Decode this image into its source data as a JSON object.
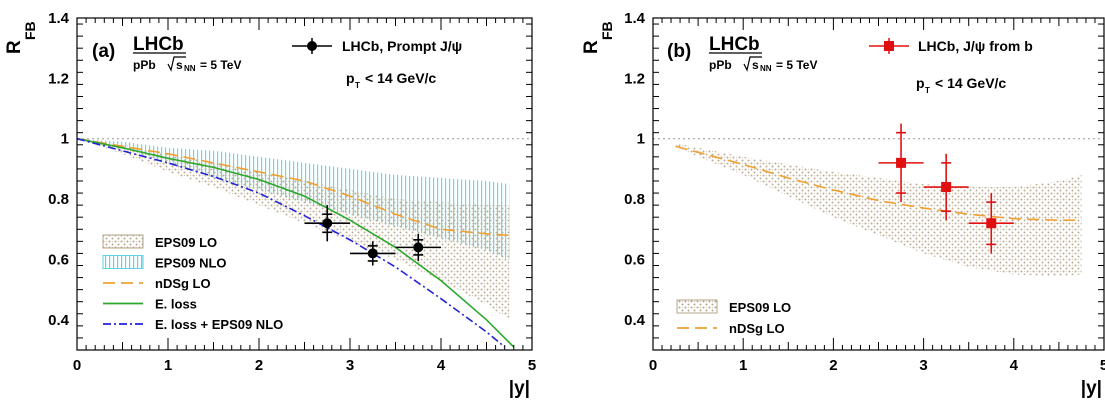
{
  "chart_data": [
    {
      "type": "line",
      "panel_label": "(a)",
      "experiment": "LHCb",
      "collision": "pPb",
      "energy_label": "= 5 TeV",
      "energy_symbol": "s",
      "energy_sub": "NN",
      "pt_label": "p",
      "pt_sub": "T",
      "pt_rest": "< 14 GeV/c",
      "xlabel": "|y|",
      "ylabel": "R",
      "ylabel_sub": "FB",
      "xlim": [
        0,
        5
      ],
      "ylim": [
        0.3,
        1.4
      ],
      "xticks": [
        "0",
        "1",
        "2",
        "3",
        "4",
        "5"
      ],
      "yticks": [
        "0.4",
        "0.6",
        "0.8",
        "1",
        "1.2",
        "1.4"
      ],
      "reference_line": 1,
      "data_legend": "LHCb, Prompt J/ψ",
      "data_color": "#000000",
      "data_points": [
        {
          "x": 2.75,
          "y": 0.72,
          "xerr": 0.25,
          "stat": 0.03,
          "tot": 0.06
        },
        {
          "x": 3.25,
          "y": 0.62,
          "xerr": 0.25,
          "stat": 0.025,
          "tot": 0.04
        },
        {
          "x": 3.75,
          "y": 0.64,
          "xerr": 0.25,
          "stat": 0.025,
          "tot": 0.045
        }
      ],
      "series": [
        {
          "name": "EPS09 LO",
          "kind": "band",
          "color": "#b5a58a",
          "x": [
            0,
            0.5,
            1,
            1.5,
            2,
            2.5,
            3,
            3.5,
            4,
            4.5,
            4.75
          ],
          "low": [
            1.0,
            0.95,
            0.89,
            0.84,
            0.78,
            0.72,
            0.66,
            0.6,
            0.53,
            0.45,
            0.4
          ],
          "high": [
            1.0,
            0.98,
            0.95,
            0.92,
            0.89,
            0.86,
            0.83,
            0.8,
            0.79,
            0.78,
            0.78
          ]
        },
        {
          "name": "EPS09 NLO",
          "kind": "band",
          "color": "#5fd3e0",
          "x": [
            0,
            0.5,
            1,
            1.5,
            2,
            2.5,
            3,
            3.5,
            4,
            4.5,
            4.75
          ],
          "low": [
            1.0,
            0.97,
            0.92,
            0.87,
            0.83,
            0.79,
            0.75,
            0.71,
            0.67,
            0.63,
            0.6
          ],
          "high": [
            1.0,
            0.99,
            0.97,
            0.96,
            0.94,
            0.92,
            0.9,
            0.88,
            0.87,
            0.86,
            0.85
          ]
        },
        {
          "name": "nDSg LO",
          "kind": "line",
          "color": "#f0a030",
          "dash": "12 6",
          "x": [
            0,
            0.5,
            1,
            1.5,
            2,
            2.5,
            3,
            3.5,
            4,
            4.5,
            4.75
          ],
          "y": [
            1.0,
            0.975,
            0.95,
            0.92,
            0.89,
            0.86,
            0.81,
            0.75,
            0.7,
            0.685,
            0.68
          ]
        },
        {
          "name": "E. loss",
          "kind": "line",
          "color": "#2ba82b",
          "dash": "",
          "x": [
            0,
            0.5,
            1,
            1.5,
            2,
            2.5,
            3,
            3.5,
            4,
            4.5,
            4.8
          ],
          "y": [
            1.0,
            0.97,
            0.935,
            0.905,
            0.865,
            0.81,
            0.73,
            0.64,
            0.53,
            0.4,
            0.31
          ]
        },
        {
          "name": "E. loss + EPS09 NLO",
          "kind": "line",
          "color": "#2323d6",
          "dash": "8 3 2 3",
          "x": [
            0,
            0.5,
            1,
            1.5,
            2,
            2.5,
            3,
            3.5,
            4,
            4.5,
            4.7
          ],
          "y": [
            1.0,
            0.96,
            0.92,
            0.875,
            0.82,
            0.745,
            0.665,
            0.575,
            0.47,
            0.36,
            0.31
          ]
        }
      ]
    },
    {
      "type": "line",
      "panel_label": "(b)",
      "experiment": "LHCb",
      "collision": "pPb",
      "energy_label": "= 5 TeV",
      "energy_symbol": "s",
      "energy_sub": "NN",
      "pt_label": "p",
      "pt_sub": "T",
      "pt_rest": "< 14 GeV/c",
      "xlabel": "|y|",
      "ylabel": "R",
      "ylabel_sub": "FB",
      "xlim": [
        0,
        5
      ],
      "ylim": [
        0.3,
        1.4
      ],
      "xticks": [
        "0",
        "1",
        "2",
        "3",
        "4",
        "5"
      ],
      "yticks": [
        "0.4",
        "0.6",
        "0.8",
        "1",
        "1.2",
        "1.4"
      ],
      "reference_line": 1,
      "data_legend": "LHCb, J/ψ from b",
      "data_color": "#e01010",
      "data_points": [
        {
          "x": 2.75,
          "y": 0.92,
          "xerr": 0.25,
          "stat": 0.1,
          "tot": 0.13
        },
        {
          "x": 3.25,
          "y": 0.84,
          "xerr": 0.25,
          "stat": 0.08,
          "tot": 0.11
        },
        {
          "x": 3.75,
          "y": 0.72,
          "xerr": 0.25,
          "stat": 0.07,
          "tot": 0.1
        }
      ],
      "series": [
        {
          "name": "EPS09 LO",
          "kind": "band",
          "color": "#b5a58a",
          "x": [
            0.25,
            0.5,
            1,
            1.5,
            2,
            2.5,
            3,
            3.5,
            4,
            4.5,
            4.75
          ],
          "low": [
            0.975,
            0.94,
            0.88,
            0.81,
            0.74,
            0.68,
            0.62,
            0.575,
            0.55,
            0.545,
            0.55
          ],
          "high": [
            0.985,
            0.97,
            0.94,
            0.915,
            0.89,
            0.87,
            0.85,
            0.84,
            0.84,
            0.86,
            0.88
          ]
        },
        {
          "name": "nDSg LO",
          "kind": "line",
          "color": "#f0a030",
          "dash": "12 6",
          "x": [
            0.25,
            0.5,
            1,
            1.5,
            2,
            2.5,
            3,
            3.5,
            4,
            4.5,
            4.75
          ],
          "y": [
            0.975,
            0.955,
            0.915,
            0.87,
            0.83,
            0.795,
            0.77,
            0.75,
            0.735,
            0.73,
            0.73
          ]
        }
      ]
    }
  ]
}
